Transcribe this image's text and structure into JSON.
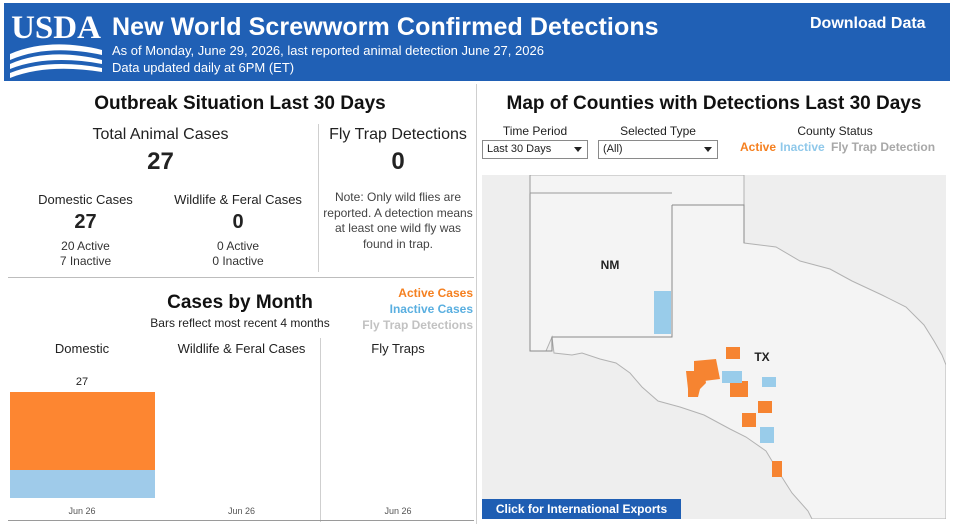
{
  "header": {
    "title": "New World Screwworm Confirmed Detections",
    "subtitle_line1": "As of Monday, June 29, 2026, last reported animal detection June 27, 2026",
    "subtitle_line2": "Data updated daily at 6PM (ET)",
    "download_label": "Download Data",
    "logo_text": "USDA"
  },
  "outbreak": {
    "heading": "Outbreak Situation Last 30 Days",
    "total_label": "Total Animal Cases",
    "total_value": "27",
    "fly_label": "Fly Trap Detections",
    "fly_value": "0",
    "domestic_label": "Domestic Cases",
    "domestic_value": "27",
    "domestic_active": "20 Active",
    "domestic_inactive": "7 Inactive",
    "wildlife_label": "Wildlife & Feral Cases",
    "wildlife_value": "0",
    "wildlife_active": "0 Active",
    "wildlife_inactive": "0 Inactive",
    "note": "Note: Only wild flies are reported. A detection means at least one wild fly was found in trap."
  },
  "cases_by_month": {
    "heading": "Cases by Month",
    "subheading": "Bars reflect most recent 4 months",
    "legend": {
      "active": "Active Cases",
      "inactive": "Inactive Cases",
      "fly": "Fly Trap Detections"
    },
    "columns": {
      "domestic": "Domestic",
      "wildlife": "Wildlife & Feral Cases",
      "fly": "Fly Traps"
    },
    "colors": {
      "active": "#fd8631",
      "inactive": "#9fcbea",
      "fly": "#c2c2c2"
    }
  },
  "chart_data": [
    {
      "type": "bar",
      "categories": [
        "Jun 26"
      ],
      "series": [
        {
          "name": "Active Cases",
          "values": [
            20
          ]
        },
        {
          "name": "Inactive Cases",
          "values": [
            7
          ]
        }
      ],
      "totals": [
        27
      ],
      "ylim": [
        0,
        34
      ]
    },
    {
      "type": "bar",
      "categories": [
        "Jun 26"
      ],
      "series": [
        {
          "name": "Active Cases",
          "values": [
            0
          ]
        },
        {
          "name": "Inactive Cases",
          "values": [
            0
          ]
        }
      ]
    },
    {
      "type": "bar",
      "categories": [
        "Jun 26"
      ],
      "series": [
        {
          "name": "Fly Trap Detections",
          "values": [
            0
          ]
        }
      ]
    }
  ],
  "map": {
    "heading": "Map of Counties with Detections Last 30 Days",
    "time_period_label": "Time Period",
    "time_period_value": "Last 30 Days",
    "selected_type_label": "Selected Type",
    "selected_type_value": "(All)",
    "county_status_label": "County Status",
    "status_active": "Active",
    "status_inactive": "Inactive",
    "status_fly": "Fly Trap Detection",
    "state_nm": "NM",
    "state_tx": "TX",
    "international_label": "Click for International Exports"
  }
}
